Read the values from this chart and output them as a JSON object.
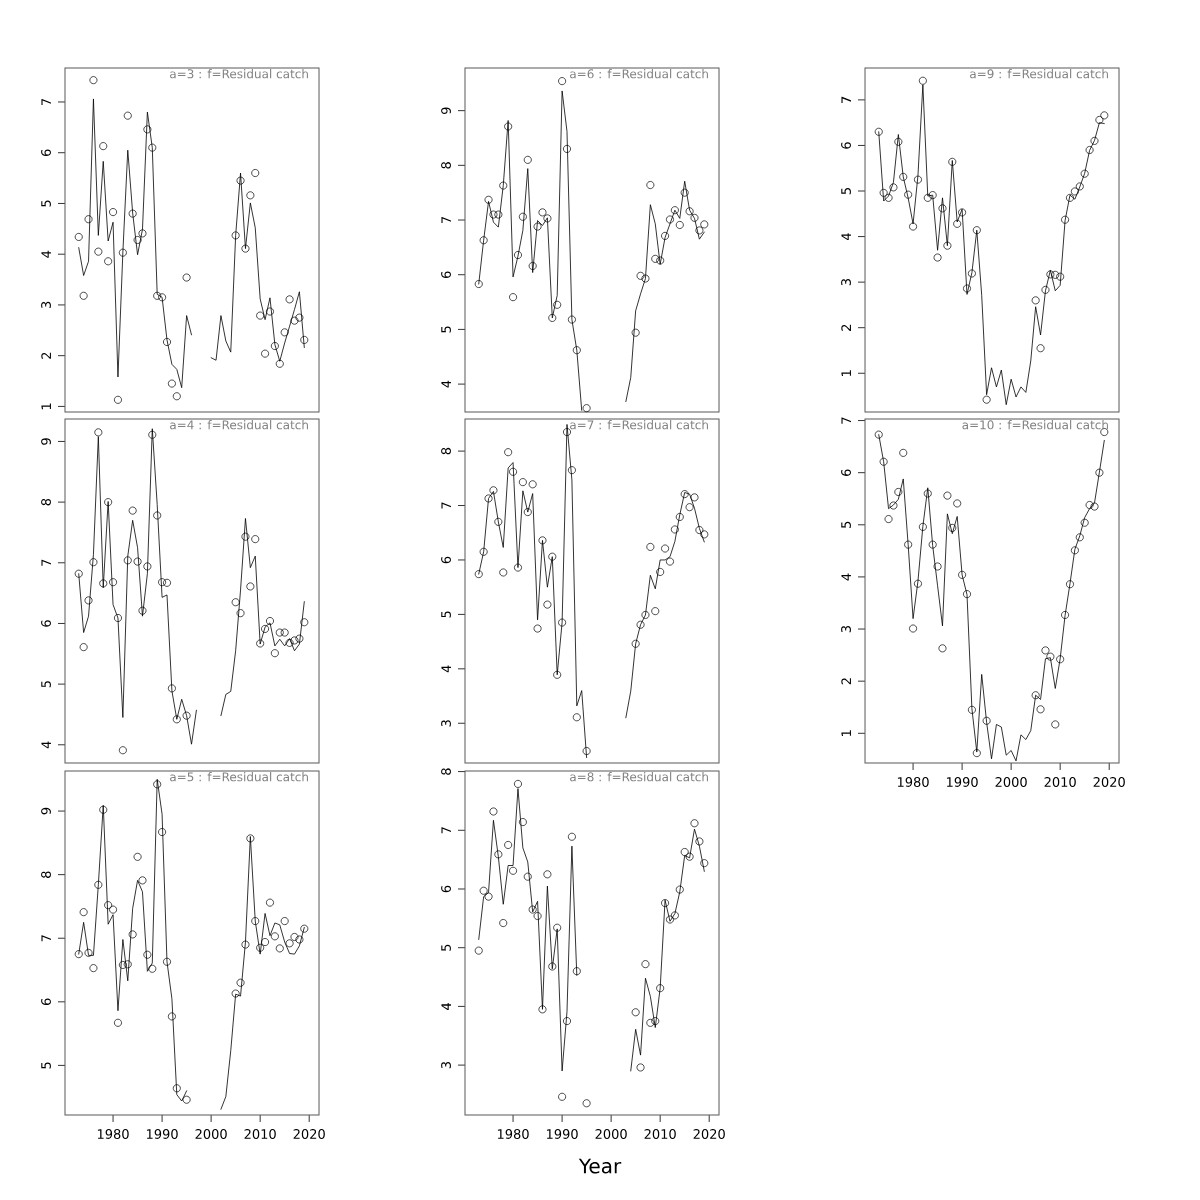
{
  "chart_data": [
    {
      "type": "line",
      "title": "a=3 : f=Residual catch",
      "x": [
        1973,
        1974,
        1975,
        1976,
        1977,
        1978,
        1979,
        1980,
        1981,
        1982,
        1983,
        1984,
        1985,
        1986,
        1987,
        1988,
        1989,
        1990,
        1991,
        1992,
        1993,
        1994,
        1995,
        1996,
        1997,
        1998,
        1999,
        2000,
        2001,
        2002,
        2003,
        2004,
        2005,
        2006,
        2007,
        2008,
        2009,
        2010,
        2011,
        2012,
        2013,
        2014,
        2015,
        2016,
        2017,
        2018,
        2019
      ],
      "xlim": [
        1970.2,
        2022
      ],
      "ylim": [
        0.89,
        7.67
      ],
      "yticks": [
        1,
        2,
        3,
        4,
        5,
        6,
        7
      ],
      "tick_labels": "y",
      "series": [
        {
          "color": "#000000",
          "marker": "none",
          "values": [
            4.13,
            3.58,
            3.86,
            7.06,
            4.37,
            5.83,
            4.26,
            4.63,
            1.58,
            4.04,
            6.05,
            4.81,
            3.99,
            4.49,
            6.8,
            6.1,
            3.21,
            3.15,
            2.31,
            1.83,
            1.73,
            1.37,
            2.79,
            2.41,
            null,
            null,
            null,
            1.96,
            1.91,
            2.79,
            2.29,
            2.07,
            4.37,
            5.6,
            4.11,
            5.01,
            4.52,
            3.12,
            2.71,
            3.14,
            2.22,
            1.89,
            2.25,
            2.58,
            2.91,
            3.26,
            2.16
          ]
        },
        {
          "type": "scatter",
          "color": "#000000",
          "marker": "circle",
          "values": [
            4.34,
            3.18,
            4.69,
            7.43,
            4.05,
            6.13,
            3.86,
            4.83,
            1.13,
            4.03,
            6.73,
            4.8,
            4.28,
            4.41,
            6.46,
            6.1,
            3.18,
            3.15,
            2.27,
            1.45,
            1.2,
            null,
            3.54,
            null,
            null,
            null,
            null,
            null,
            null,
            null,
            null,
            null,
            4.37,
            5.45,
            4.11,
            5.16,
            5.6,
            2.79,
            2.04,
            2.87,
            2.19,
            1.84,
            2.46,
            3.11,
            2.69,
            2.75,
            2.31
          ]
        }
      ]
    },
    {
      "type": "line",
      "title": "a=6 : f=Residual catch",
      "x": [
        1973,
        1974,
        1975,
        1976,
        1977,
        1978,
        1979,
        1980,
        1981,
        1982,
        1983,
        1984,
        1985,
        1986,
        1987,
        1988,
        1989,
        1990,
        1991,
        1992,
        1993,
        1994,
        1995,
        1996,
        1997,
        1998,
        1999,
        2000,
        2001,
        2002,
        2003,
        2004,
        2005,
        2006,
        2007,
        2008,
        2009,
        2010,
        2011,
        2012,
        2013,
        2014,
        2015,
        2016,
        2017,
        2018,
        2019
      ],
      "xlim": [
        1970.2,
        2022
      ],
      "ylim": [
        3.49,
        9.78
      ],
      "yticks": [
        4,
        5,
        6,
        7,
        8,
        9
      ],
      "tick_labels": "y",
      "series": [
        {
          "color": "#000000",
          "marker": "none",
          "values": [
            5.83,
            6.63,
            7.34,
            6.96,
            6.87,
            7.63,
            8.82,
            5.96,
            6.34,
            6.81,
            7.94,
            6.04,
            6.99,
            6.9,
            7.04,
            5.21,
            5.62,
            9.36,
            8.62,
            5.18,
            4.62,
            3.52,
            null,
            null,
            null,
            null,
            null,
            null,
            null,
            null,
            3.68,
            4.12,
            5.34,
            5.65,
            5.93,
            7.28,
            6.93,
            6.19,
            6.68,
            6.93,
            7.18,
            7.03,
            7.71,
            7.18,
            7.03,
            6.65,
            6.78
          ]
        },
        {
          "type": "scatter",
          "color": "#000000",
          "marker": "circle",
          "values": [
            5.83,
            6.63,
            7.37,
            7.1,
            7.1,
            7.63,
            8.71,
            5.59,
            6.36,
            7.06,
            8.1,
            6.16,
            6.88,
            7.14,
            7.03,
            5.21,
            5.45,
            9.54,
            8.3,
            5.18,
            4.62,
            null,
            3.56,
            null,
            null,
            null,
            null,
            null,
            null,
            null,
            null,
            null,
            4.94,
            5.98,
            5.93,
            7.64,
            6.29,
            6.26,
            6.71,
            7.01,
            7.18,
            6.91,
            7.5,
            7.16,
            7.04,
            6.81,
            6.92
          ]
        }
      ]
    },
    {
      "type": "line",
      "title": "a=9 : f=Residual catch",
      "x": [
        1973,
        1974,
        1975,
        1976,
        1977,
        1978,
        1979,
        1980,
        1981,
        1982,
        1983,
        1984,
        1985,
        1986,
        1987,
        1988,
        1989,
        1990,
        1991,
        1992,
        1993,
        1994,
        1995,
        1996,
        1997,
        1998,
        1999,
        2000,
        2001,
        2002,
        2003,
        2004,
        2005,
        2006,
        2007,
        2008,
        2009,
        2010,
        2011,
        2012,
        2013,
        2014,
        2015,
        2016,
        2017,
        2018,
        2019
      ],
      "xlim": [
        1970.2,
        2022
      ],
      "ylim": [
        0.15,
        7.7
      ],
      "yticks": [
        1,
        2,
        3,
        4,
        5,
        6,
        7
      ],
      "tick_labels": "y",
      "series": [
        {
          "color": "#000000",
          "marker": "none",
          "values": [
            6.3,
            4.78,
            4.89,
            5.19,
            6.24,
            5.31,
            4.85,
            4.28,
            5.34,
            7.33,
            4.89,
            4.91,
            3.7,
            4.85,
            3.8,
            5.67,
            4.32,
            4.6,
            2.73,
            3.21,
            4.14,
            2.71,
            0.53,
            1.12,
            0.7,
            1.07,
            0.31,
            0.87,
            0.48,
            0.7,
            0.58,
            1.27,
            2.46,
            1.84,
            2.81,
            3.26,
            2.81,
            2.93,
            4.35,
            4.91,
            4.82,
            5.09,
            5.39,
            5.89,
            6.11,
            6.5,
            6.48
          ]
        },
        {
          "type": "scatter",
          "color": "#000000",
          "marker": "circle",
          "values": [
            6.3,
            4.96,
            4.85,
            5.08,
            6.08,
            5.31,
            4.92,
            4.22,
            5.25,
            7.42,
            4.85,
            4.91,
            3.54,
            4.62,
            3.8,
            5.64,
            4.28,
            4.53,
            2.86,
            3.19,
            4.14,
            null,
            0.42,
            null,
            null,
            null,
            null,
            null,
            null,
            null,
            null,
            null,
            2.6,
            1.55,
            2.83,
            3.17,
            3.16,
            3.12,
            4.37,
            4.85,
            4.99,
            5.1,
            5.38,
            5.9,
            6.1,
            6.56,
            6.66
          ]
        }
      ]
    },
    {
      "type": "line",
      "title": "a=4 : f=Residual catch",
      "x": [
        1973,
        1974,
        1975,
        1976,
        1977,
        1978,
        1979,
        1980,
        1981,
        1982,
        1983,
        1984,
        1985,
        1986,
        1987,
        1988,
        1989,
        1990,
        1991,
        1992,
        1993,
        1994,
        1995,
        1996,
        1997,
        1998,
        1999,
        2000,
        2001,
        2002,
        2003,
        2004,
        2005,
        2006,
        2007,
        2008,
        2009,
        2010,
        2011,
        2012,
        2013,
        2014,
        2015,
        2016,
        2017,
        2018,
        2019
      ],
      "xlim": [
        1970.2,
        2022
      ],
      "ylim": [
        3.7,
        9.37
      ],
      "yticks": [
        4,
        5,
        6,
        7,
        8,
        9
      ],
      "tick_labels": "y",
      "series": [
        {
          "color": "#000000",
          "marker": "none",
          "values": [
            6.82,
            5.85,
            6.12,
            7.14,
            9.08,
            6.59,
            8.01,
            6.31,
            6.09,
            4.45,
            7.11,
            7.7,
            7.25,
            6.12,
            6.82,
            9.21,
            7.96,
            6.43,
            6.47,
            4.89,
            4.42,
            4.75,
            4.48,
            4.01,
            4.57,
            null,
            null,
            null,
            null,
            4.48,
            4.83,
            4.88,
            5.55,
            6.55,
            7.73,
            6.92,
            7.11,
            5.66,
            5.94,
            6.01,
            5.63,
            5.74,
            5.63,
            5.75,
            5.55,
            5.66,
            6.36
          ]
        },
        {
          "type": "scatter",
          "color": "#000000",
          "marker": "circle",
          "values": [
            6.82,
            5.61,
            6.38,
            7.01,
            9.15,
            6.66,
            8.0,
            6.68,
            6.09,
            3.91,
            7.04,
            7.86,
            7.02,
            6.21,
            6.94,
            9.11,
            7.78,
            6.68,
            6.67,
            4.93,
            4.42,
            null,
            4.48,
            null,
            null,
            null,
            null,
            null,
            null,
            null,
            null,
            null,
            6.35,
            6.17,
            7.43,
            6.61,
            7.39,
            5.67,
            5.91,
            6.04,
            5.51,
            5.85,
            5.85,
            5.68,
            5.72,
            5.75,
            6.02
          ]
        }
      ]
    },
    {
      "type": "line",
      "title": "a=7 : f=Residual catch",
      "x": [
        1973,
        1974,
        1975,
        1976,
        1977,
        1978,
        1979,
        1980,
        1981,
        1982,
        1983,
        1984,
        1985,
        1986,
        1987,
        1988,
        1989,
        1990,
        1991,
        1992,
        1993,
        1994,
        1995,
        1996,
        1997,
        1998,
        1999,
        2000,
        2001,
        2002,
        2003,
        2004,
        2005,
        2006,
        2007,
        2008,
        2009,
        2010,
        2011,
        2012,
        2013,
        2014,
        2015,
        2016,
        2017,
        2018,
        2019
      ],
      "xlim": [
        1970.2,
        2022
      ],
      "ylim": [
        2.27,
        8.59
      ],
      "yticks": [
        3,
        4,
        5,
        6,
        7,
        8
      ],
      "tick_labels": "y",
      "series": [
        {
          "color": "#000000",
          "marker": "none",
          "values": [
            5.74,
            6.15,
            7.13,
            7.26,
            6.7,
            6.23,
            7.69,
            7.79,
            5.86,
            7.27,
            6.88,
            7.22,
            4.9,
            6.36,
            5.5,
            6.06,
            3.89,
            4.85,
            8.49,
            7.47,
            3.32,
            3.6,
            2.37,
            null,
            null,
            null,
            null,
            null,
            null,
            null,
            3.1,
            3.59,
            4.46,
            4.81,
            4.99,
            5.72,
            5.47,
            6.0,
            6.0,
            6.06,
            6.34,
            6.83,
            7.24,
            7.21,
            6.95,
            6.58,
            6.33
          ]
        },
        {
          "type": "scatter",
          "color": "#000000",
          "marker": "circle",
          "values": [
            5.74,
            6.15,
            7.13,
            7.28,
            6.7,
            5.77,
            7.98,
            7.62,
            5.86,
            7.43,
            6.88,
            7.39,
            4.74,
            6.36,
            5.18,
            6.06,
            3.89,
            4.85,
            8.35,
            7.65,
            3.11,
            null,
            2.49,
            null,
            null,
            null,
            null,
            null,
            null,
            null,
            null,
            null,
            4.46,
            4.81,
            4.99,
            6.24,
            5.06,
            5.78,
            6.21,
            5.97,
            6.56,
            6.79,
            7.21,
            6.97,
            7.15,
            6.55,
            6.47
          ]
        }
      ]
    },
    {
      "type": "line",
      "title": "a=10 : f=Residual catch",
      "x": [
        1973,
        1974,
        1975,
        1976,
        1977,
        1978,
        1979,
        1980,
        1981,
        1982,
        1983,
        1984,
        1985,
        1986,
        1987,
        1988,
        1989,
        1990,
        1991,
        1992,
        1993,
        1994,
        1995,
        1996,
        1997,
        1998,
        1999,
        2000,
        2001,
        2002,
        2003,
        2004,
        2005,
        2006,
        2007,
        2008,
        2009,
        2010,
        2011,
        2012,
        2013,
        2014,
        2015,
        2016,
        2017,
        2018,
        2019
      ],
      "xlim": [
        1970.2,
        2022
      ],
      "xticks": [
        1980,
        1990,
        2000,
        2010,
        2020
      ],
      "ylim": [
        0.43,
        7.03
      ],
      "yticks": [
        1,
        2,
        3,
        4,
        5,
        6,
        7
      ],
      "series": [
        {
          "color": "#000000",
          "marker": "none",
          "values": [
            6.73,
            6.21,
            5.31,
            5.38,
            5.49,
            5.88,
            4.62,
            3.2,
            3.92,
            4.97,
            5.71,
            4.6,
            3.83,
            3.06,
            5.21,
            4.83,
            5.16,
            4.04,
            3.66,
            1.47,
            0.64,
            2.13,
            1.21,
            0.51,
            1.17,
            1.12,
            0.58,
            0.67,
            0.47,
            0.97,
            0.88,
            1.05,
            1.73,
            1.65,
            2.43,
            2.45,
            1.86,
            2.43,
            3.26,
            3.87,
            4.53,
            4.79,
            5.14,
            5.31,
            5.42,
            6.01,
            6.62
          ]
        },
        {
          "type": "scatter",
          "color": "#000000",
          "marker": "circle",
          "values": [
            6.73,
            6.21,
            5.11,
            5.37,
            5.63,
            6.38,
            4.62,
            3.01,
            3.87,
            4.96,
            5.6,
            4.62,
            4.2,
            2.63,
            5.56,
            4.94,
            5.41,
            4.04,
            3.67,
            1.45,
            0.62,
            null,
            1.24,
            null,
            null,
            null,
            null,
            null,
            null,
            null,
            null,
            null,
            1.73,
            1.46,
            2.59,
            2.47,
            1.17,
            2.42,
            3.27,
            3.86,
            4.51,
            4.76,
            5.04,
            5.38,
            5.35,
            6.0,
            6.78
          ]
        }
      ]
    },
    {
      "type": "line",
      "title": "a=5 : f=Residual catch",
      "x": [
        1973,
        1974,
        1975,
        1976,
        1977,
        1978,
        1979,
        1980,
        1981,
        1982,
        1983,
        1984,
        1985,
        1986,
        1987,
        1988,
        1989,
        1990,
        1991,
        1992,
        1993,
        1994,
        1995,
        1996,
        1997,
        1998,
        1999,
        2000,
        2001,
        2002,
        2003,
        2004,
        2005,
        2006,
        2007,
        2008,
        2009,
        2010,
        2011,
        2012,
        2013,
        2014,
        2015,
        2016,
        2017,
        2018,
        2019
      ],
      "xlim": [
        1970.2,
        2022
      ],
      "xticks": [
        1980,
        1990,
        2000,
        2010,
        2020
      ],
      "ylim": [
        4.22,
        9.63
      ],
      "yticks": [
        5,
        6,
        7,
        8,
        9
      ],
      "series": [
        {
          "color": "#000000",
          "marker": "none",
          "values": [
            6.75,
            7.25,
            6.73,
            6.73,
            7.84,
            9.09,
            7.22,
            7.37,
            5.86,
            6.98,
            6.33,
            7.47,
            7.91,
            7.73,
            6.48,
            6.61,
            9.5,
            8.95,
            6.63,
            6.05,
            4.54,
            4.44,
            4.6,
            null,
            null,
            null,
            null,
            null,
            null,
            4.31,
            4.51,
            5.23,
            6.12,
            6.09,
            6.94,
            8.6,
            7.27,
            6.75,
            7.39,
            7.04,
            7.24,
            7.21,
            6.94,
            6.76,
            6.75,
            6.88,
            7.17
          ]
        },
        {
          "type": "scatter",
          "color": "#000000",
          "marker": "circle",
          "values": [
            6.75,
            7.41,
            6.77,
            6.53,
            7.84,
            9.02,
            7.52,
            7.45,
            5.67,
            6.58,
            6.59,
            7.06,
            8.28,
            7.91,
            6.74,
            6.52,
            9.42,
            8.67,
            6.63,
            5.77,
            4.64,
            null,
            4.46,
            null,
            null,
            null,
            null,
            null,
            null,
            null,
            null,
            null,
            6.13,
            6.3,
            6.9,
            8.57,
            7.27,
            6.85,
            6.94,
            7.56,
            7.03,
            6.84,
            7.27,
            6.92,
            7.02,
            6.98,
            7.15
          ]
        }
      ]
    },
    {
      "type": "line",
      "title": "a=8 : f=Residual catch",
      "xlabel": "Year",
      "x": [
        1973,
        1974,
        1975,
        1976,
        1977,
        1978,
        1979,
        1980,
        1981,
        1982,
        1983,
        1984,
        1985,
        1986,
        1987,
        1988,
        1989,
        1990,
        1991,
        1992,
        1993,
        1994,
        1995,
        1996,
        1997,
        1998,
        1999,
        2000,
        2001,
        2002,
        2003,
        2004,
        2005,
        2006,
        2007,
        2008,
        2009,
        2010,
        2011,
        2012,
        2013,
        2014,
        2015,
        2016,
        2017,
        2018,
        2019
      ],
      "xlim": [
        1970.2,
        2022
      ],
      "xticks": [
        1980,
        1990,
        2000,
        2010,
        2020
      ],
      "ylim": [
        2.15,
        8.01
      ],
      "yticks": [
        3,
        4,
        5,
        6,
        7,
        8
      ],
      "series": [
        {
          "color": "#000000",
          "marker": "none",
          "values": [
            5.14,
            5.87,
            5.94,
            7.17,
            6.55,
            5.74,
            6.4,
            6.4,
            7.71,
            6.7,
            6.46,
            5.61,
            5.79,
            3.95,
            6.05,
            4.64,
            5.32,
            2.9,
            3.91,
            6.73,
            4.53,
            null,
            null,
            null,
            null,
            null,
            null,
            null,
            null,
            null,
            null,
            2.9,
            3.61,
            3.17,
            4.48,
            4.17,
            3.64,
            4.31,
            5.81,
            5.45,
            5.58,
            5.95,
            6.57,
            6.53,
            7.02,
            6.73,
            6.3
          ]
        },
        {
          "type": "scatter",
          "color": "#000000",
          "marker": "circle",
          "values": [
            4.95,
            5.97,
            5.87,
            7.32,
            6.59,
            5.42,
            6.75,
            6.31,
            7.79,
            7.14,
            6.21,
            5.65,
            5.54,
            3.95,
            6.25,
            4.68,
            5.34,
            2.46,
            3.75,
            6.89,
            4.6,
            null,
            2.35,
            null,
            null,
            null,
            null,
            null,
            null,
            null,
            null,
            null,
            3.9,
            2.96,
            4.72,
            3.72,
            3.75,
            4.31,
            5.76,
            5.48,
            5.55,
            5.99,
            6.63,
            6.55,
            7.12,
            6.81,
            6.44
          ]
        }
      ]
    }
  ]
}
